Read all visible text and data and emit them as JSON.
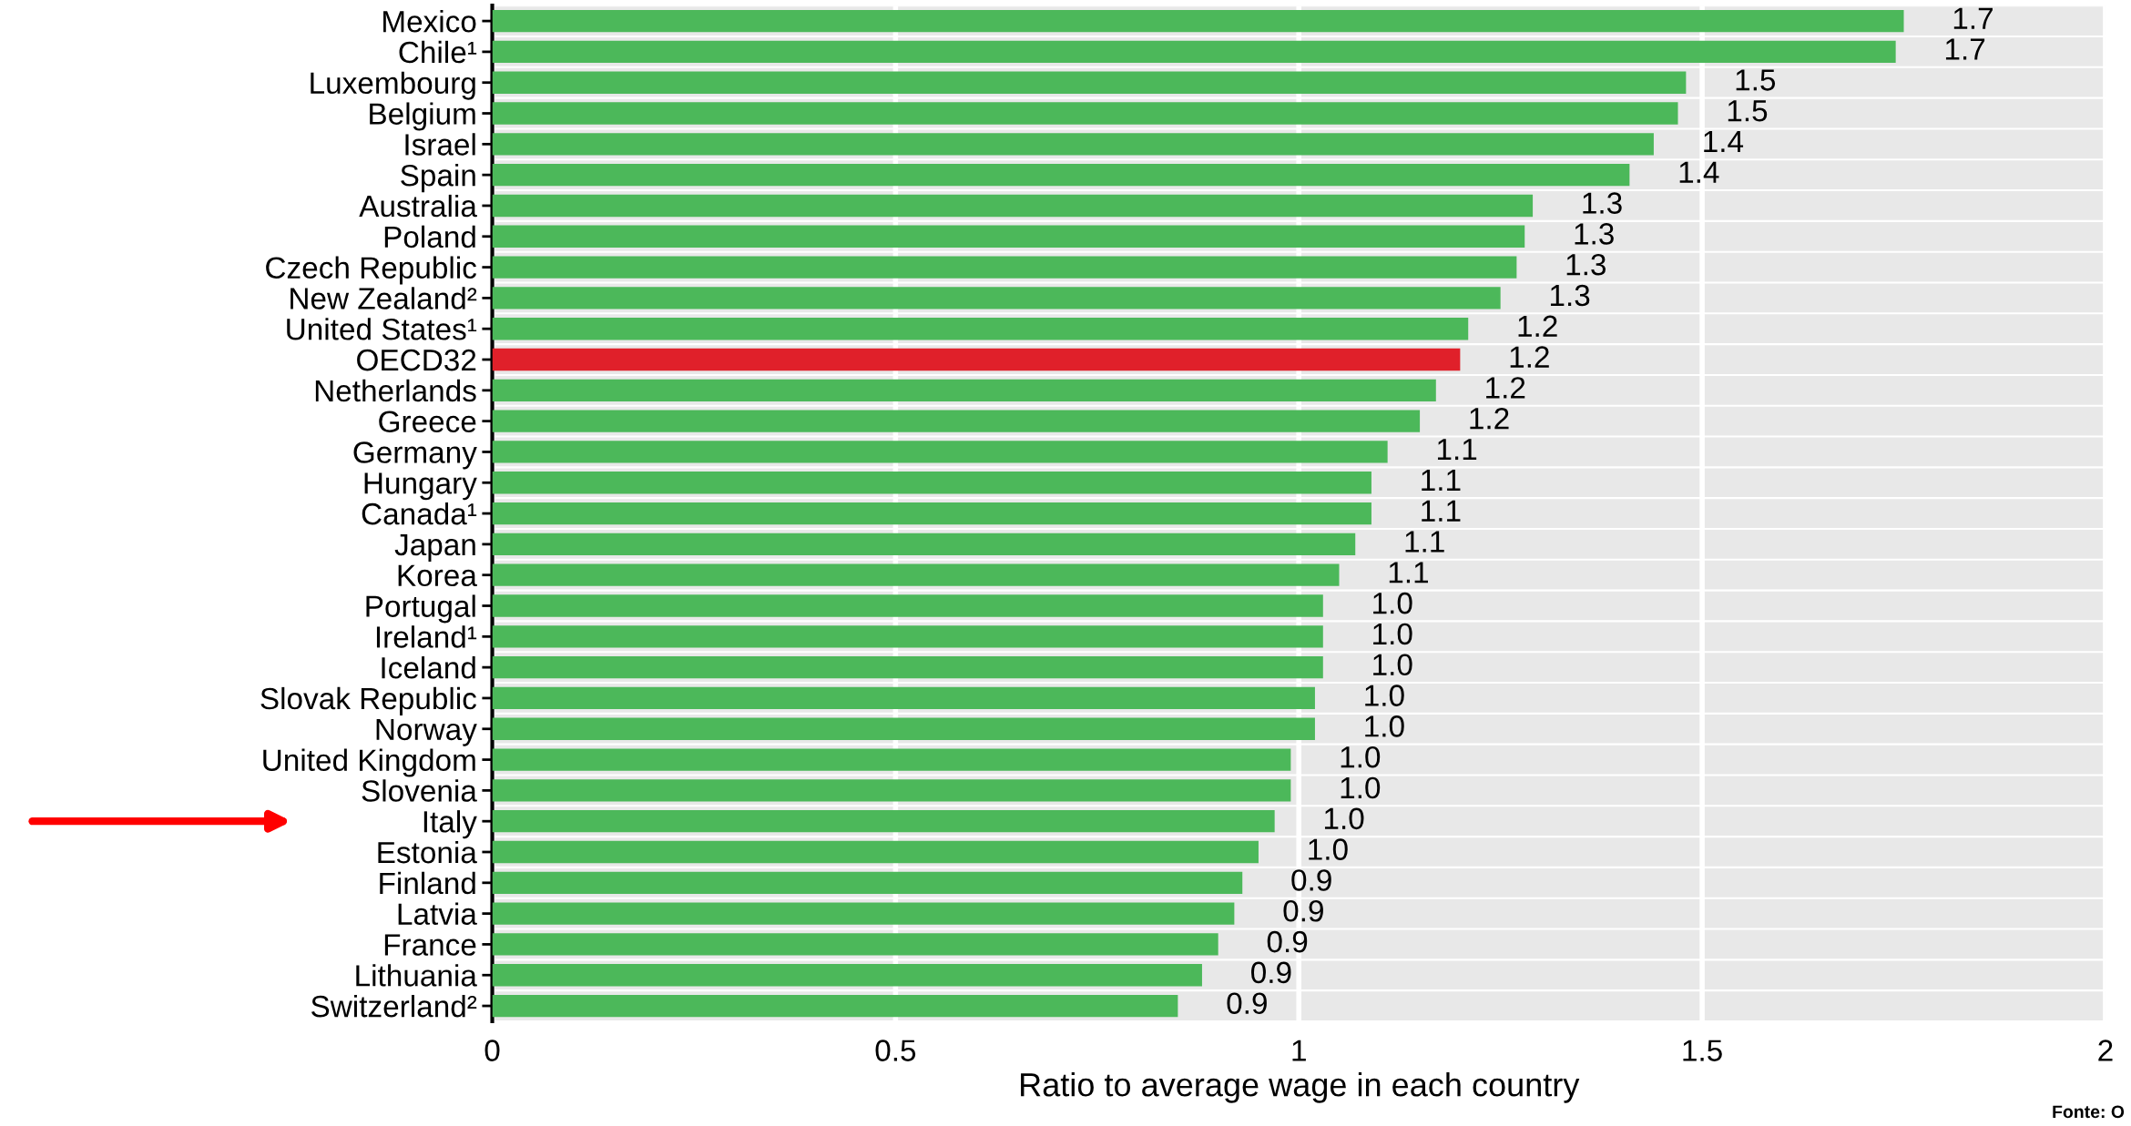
{
  "chart_data": {
    "type": "bar",
    "orientation": "horizontal",
    "xlabel": "Ratio to average wage in each country",
    "categories": [
      "Mexico",
      "Chile¹",
      "Luxembourg",
      "Belgium",
      "Israel",
      "Spain",
      "Australia",
      "Poland",
      "Czech Republic",
      "New Zealand²",
      "United States¹",
      "OECD32",
      "Netherlands",
      "Greece",
      "Germany",
      "Hungary",
      "Canada¹",
      "Japan",
      "Korea",
      "Portugal",
      "Ireland¹",
      "Iceland",
      "Slovak Republic",
      "Norway",
      "United Kingdom",
      "Slovenia",
      "Italy",
      "Estonia",
      "Finland",
      "Latvia",
      "France",
      "Lithuania",
      "Switzerland²"
    ],
    "values": [
      1.75,
      1.74,
      1.48,
      1.47,
      1.44,
      1.41,
      1.29,
      1.28,
      1.27,
      1.25,
      1.21,
      1.2,
      1.17,
      1.15,
      1.11,
      1.09,
      1.09,
      1.07,
      1.05,
      1.03,
      1.03,
      1.03,
      1.02,
      1.02,
      0.99,
      0.99,
      0.97,
      0.95,
      0.93,
      0.92,
      0.9,
      0.88,
      0.85
    ],
    "value_labels": [
      "1.7",
      "1.7",
      "1.5",
      "1.5",
      "1.4",
      "1.4",
      "1.3",
      "1.3",
      "1.3",
      "1.3",
      "1.2",
      "1.2",
      "1.2",
      "1.2",
      "1.1",
      "1.1",
      "1.1",
      "1.1",
      "1.1",
      "1.0",
      "1.0",
      "1.0",
      "1.0",
      "1.0",
      "1.0",
      "1.0",
      "1.0",
      "1.0",
      "0.9",
      "0.9",
      "0.9",
      "0.9",
      "0.9"
    ],
    "colors": [
      "#4cb85a",
      "#4cb85a",
      "#4cb85a",
      "#4cb85a",
      "#4cb85a",
      "#4cb85a",
      "#4cb85a",
      "#4cb85a",
      "#4cb85a",
      "#4cb85a",
      "#4cb85a",
      "#e0202a",
      "#4cb85a",
      "#4cb85a",
      "#4cb85a",
      "#4cb85a",
      "#4cb85a",
      "#4cb85a",
      "#4cb85a",
      "#4cb85a",
      "#4cb85a",
      "#4cb85a",
      "#4cb85a",
      "#4cb85a",
      "#4cb85a",
      "#4cb85a",
      "#4cb85a",
      "#4cb85a",
      "#4cb85a",
      "#4cb85a",
      "#4cb85a",
      "#4cb85a",
      "#4cb85a"
    ],
    "xlim": [
      0,
      2
    ],
    "xticks": [
      0,
      0.5,
      1,
      1.5,
      2
    ],
    "grid": "x",
    "annotations": [
      "Fonte: O"
    ]
  }
}
